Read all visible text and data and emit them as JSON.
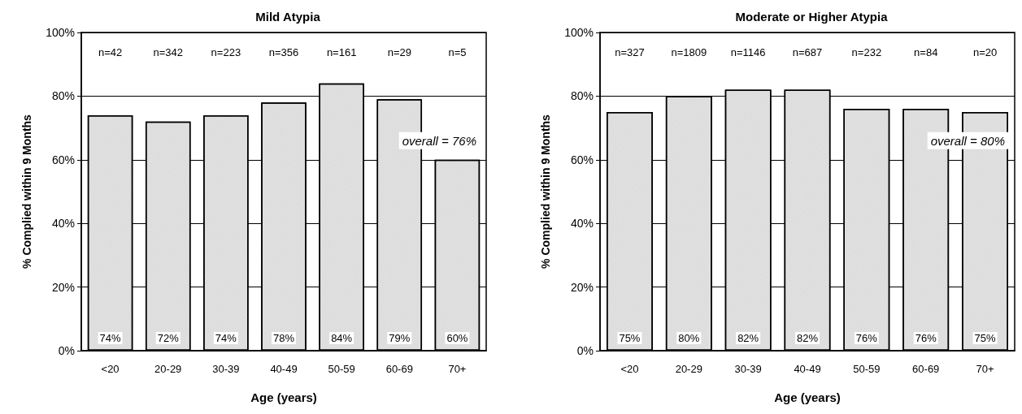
{
  "chart_data": [
    {
      "type": "bar",
      "title": "Mild Atypia",
      "xlabel": "Age (years)",
      "ylabel": "% Complied within 9 Months",
      "categories": [
        "<20",
        "20-29",
        "30-39",
        "40-49",
        "50-59",
        "60-69",
        "70+"
      ],
      "values": [
        74,
        72,
        74,
        78,
        84,
        79,
        60
      ],
      "value_labels": [
        "74%",
        "72%",
        "74%",
        "78%",
        "84%",
        "79%",
        "60%"
      ],
      "color": "#e0e0e0",
      "ylim": [
        0,
        100
      ],
      "yticks": [
        {
          "value": 0,
          "label": "0%"
        },
        {
          "value": 20,
          "label": "20%"
        },
        {
          "value": 40,
          "label": "40%"
        },
        {
          "value": 60,
          "label": "60%"
        },
        {
          "value": 80,
          "label": "80%"
        },
        {
          "value": 100,
          "label": "100%"
        }
      ],
      "grid": "y",
      "annotations": [
        "n=42",
        "n=342",
        "n=223",
        "n=356",
        "n=161",
        "n=29",
        "n=5",
        "overall = 76%"
      ]
    },
    {
      "type": "bar",
      "title": "Moderate or Higher Atypia",
      "xlabel": "Age (years)",
      "ylabel": "% Complied within 9 Months",
      "categories": [
        "<20",
        "20-29",
        "30-39",
        "40-49",
        "50-59",
        "60-69",
        "70+"
      ],
      "values": [
        75,
        80,
        82,
        82,
        76,
        76,
        75
      ],
      "value_labels": [
        "75%",
        "80%",
        "82%",
        "82%",
        "76%",
        "76%",
        "75%"
      ],
      "color": "#e0e0e0",
      "ylim": [
        0,
        100
      ],
      "yticks": [
        {
          "value": 0,
          "label": "0%"
        },
        {
          "value": 20,
          "label": "20%"
        },
        {
          "value": 40,
          "label": "40%"
        },
        {
          "value": 60,
          "label": "60%"
        },
        {
          "value": 80,
          "label": "80%"
        },
        {
          "value": 100,
          "label": "100%"
        }
      ],
      "grid": "y",
      "annotations": [
        "n=327",
        "n=1809",
        "n=1146",
        "n=687",
        "n=232",
        "n=84",
        "n=20",
        "overall = 80%"
      ]
    }
  ]
}
